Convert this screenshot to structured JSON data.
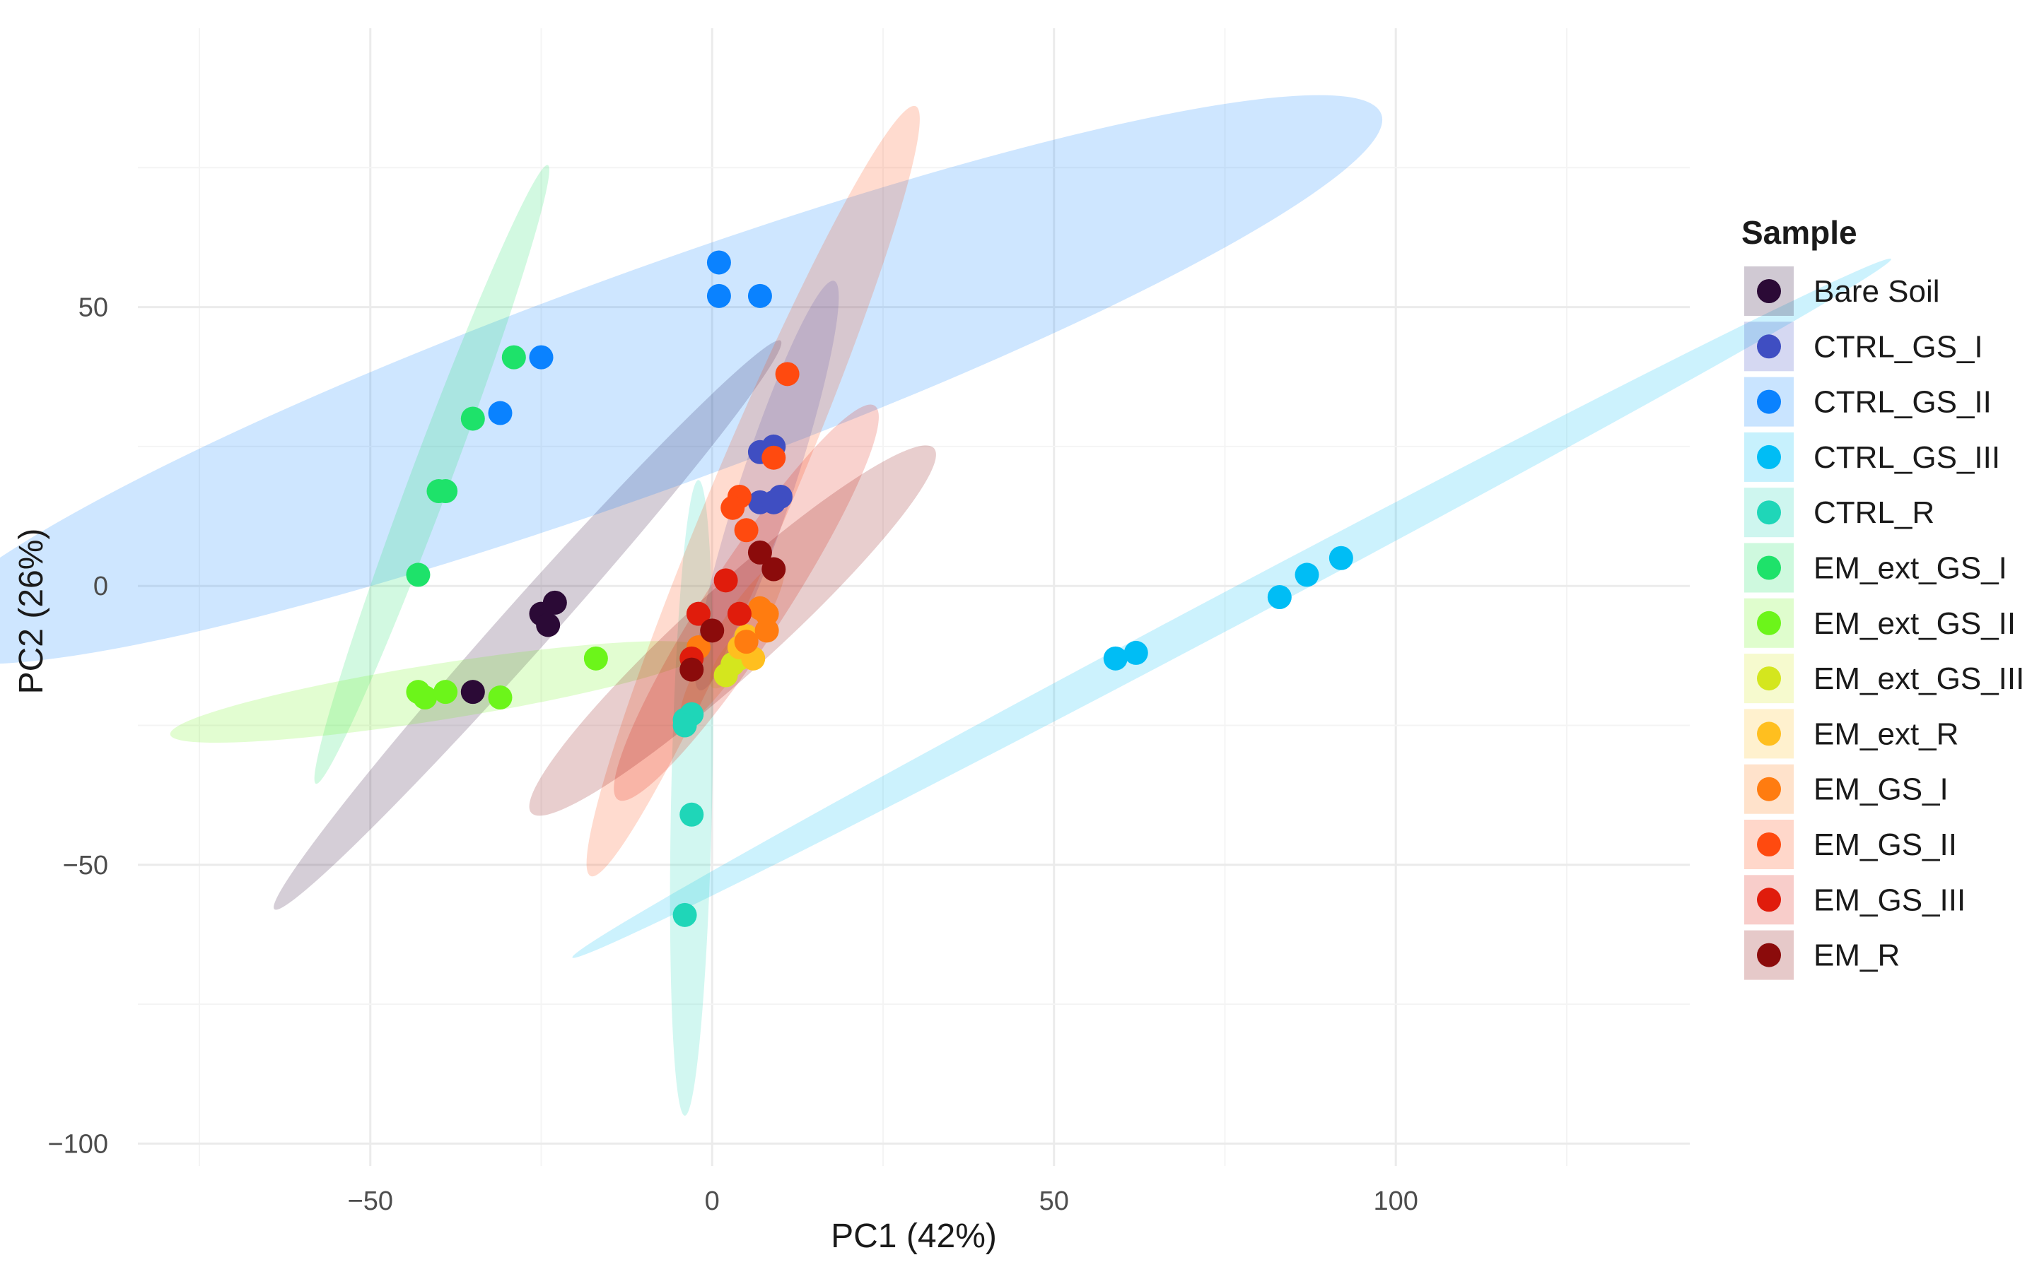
{
  "chart_data": {
    "type": "scatter",
    "title": "",
    "xlabel": "PC1 (42%)",
    "ylabel": "PC2 (26%)",
    "xlim": [
      -84,
      143
    ],
    "ylim": [
      -104,
      100
    ],
    "xticks": [
      -50,
      0,
      50,
      100
    ],
    "yticks": [
      -100,
      -50,
      0,
      50
    ],
    "xtick_labels": [
      "−50",
      "0",
      "50",
      "100"
    ],
    "ytick_labels": [
      "−100",
      "−50",
      "0",
      "50"
    ],
    "grid": true,
    "legend": {
      "title": "Sample",
      "position": "right"
    },
    "series": [
      {
        "name": "Bare Soil",
        "color": "#2b0a36",
        "ellipse": {
          "cx": -27,
          "cy": -7,
          "a": 63,
          "b": 4,
          "angle_deg": 54
        },
        "points": [
          [
            -25,
            -5
          ],
          [
            -23,
            -3
          ],
          [
            -24,
            -7
          ],
          [
            -35,
            -19
          ]
        ]
      },
      {
        "name": "CTRL_GS_I",
        "color": "#3f4ec2",
        "ellipse": {
          "cx": 8,
          "cy": 18,
          "a": 38,
          "b": 4,
          "angle_deg": 75
        },
        "points": [
          [
            7,
            24
          ],
          [
            9,
            25
          ],
          [
            7,
            15
          ],
          [
            10,
            16
          ],
          [
            9,
            15
          ]
        ]
      },
      {
        "name": "CTRL_GS_II",
        "color": "#0a82ff",
        "ellipse": {
          "cx": -9,
          "cy": 37,
          "a": 117,
          "b": 19,
          "angle_deg": 24
        },
        "points": [
          [
            1,
            58
          ],
          [
            1,
            52
          ],
          [
            7,
            52
          ],
          [
            -25,
            41
          ],
          [
            -31,
            31
          ]
        ]
      },
      {
        "name": "CTRL_GS_III",
        "color": "#00bdf5",
        "ellipse": {
          "cx": 76,
          "cy": -4,
          "a": 115,
          "b": 3,
          "angle_deg": 33
        },
        "points": [
          [
            59,
            -13
          ],
          [
            62,
            -12
          ],
          [
            83,
            -2
          ],
          [
            87,
            2
          ],
          [
            92,
            5
          ]
        ]
      },
      {
        "name": "CTRL_R",
        "color": "#1fd6b8",
        "ellipse": {
          "cx": -3,
          "cy": -38,
          "a": 57,
          "b": 3,
          "angle_deg": 89
        },
        "points": [
          [
            -4,
            -24
          ],
          [
            -3,
            -23
          ],
          [
            -4,
            -25
          ],
          [
            -3,
            -41
          ],
          [
            -4,
            -59
          ]
        ]
      },
      {
        "name": "EM_ext_GS_I",
        "color": "#1ee26a",
        "ellipse": {
          "cx": -41,
          "cy": 20,
          "a": 58,
          "b": 3,
          "angle_deg": 73
        },
        "points": [
          [
            -29,
            41
          ],
          [
            -35,
            30
          ],
          [
            -39,
            17
          ],
          [
            -40,
            17
          ],
          [
            -43,
            2
          ]
        ]
      },
      {
        "name": "EM_ext_GS_II",
        "color": "#6cf51a",
        "ellipse": {
          "cx": -40,
          "cy": -19,
          "a": 40,
          "b": 5,
          "angle_deg": 11
        },
        "points": [
          [
            -17,
            -13
          ],
          [
            -43,
            -19
          ],
          [
            -42,
            -20
          ],
          [
            -39,
            -19
          ],
          [
            -31,
            -20
          ]
        ]
      },
      {
        "name": "EM_ext_GS_III",
        "color": "#d4e61e",
        "ellipse": {
          "cx": 3,
          "cy": -13,
          "a": 6,
          "b": 2,
          "angle_deg": 60
        },
        "points": [
          [
            2,
            -16
          ],
          [
            3,
            -14
          ],
          [
            4,
            -13
          ]
        ]
      },
      {
        "name": "EM_ext_R",
        "color": "#ffbf1f",
        "ellipse": {
          "cx": 4,
          "cy": -12,
          "a": 5,
          "b": 2,
          "angle_deg": 60
        },
        "points": [
          [
            4,
            -11
          ],
          [
            6,
            -13
          ],
          [
            5,
            -9
          ]
        ]
      },
      {
        "name": "EM_GS_I",
        "color": "#ff7c10",
        "ellipse": {
          "cx": 3,
          "cy": -10,
          "a": 16,
          "b": 3,
          "angle_deg": 63
        },
        "points": [
          [
            7,
            -4
          ],
          [
            8,
            -5
          ],
          [
            8,
            -8
          ],
          [
            5,
            -10
          ],
          [
            -2,
            -11
          ]
        ]
      },
      {
        "name": "EM_GS_II",
        "color": "#ff4a0f",
        "ellipse": {
          "cx": 6,
          "cy": 17,
          "a": 73,
          "b": 6,
          "angle_deg": 71
        },
        "points": [
          [
            11,
            38
          ],
          [
            9,
            23
          ],
          [
            4,
            16
          ],
          [
            3,
            14
          ],
          [
            5,
            10
          ]
        ]
      },
      {
        "name": "EM_GS_III",
        "color": "#e01c0c",
        "ellipse": {
          "cx": 5,
          "cy": -3,
          "a": 40,
          "b": 6,
          "angle_deg": 62
        },
        "points": [
          [
            2,
            1
          ],
          [
            4,
            -5
          ],
          [
            -2,
            -5
          ],
          [
            -3,
            -13
          ]
        ]
      },
      {
        "name": "EM_R",
        "color": "#8b0b0b",
        "ellipse": {
          "cx": 3,
          "cy": -8,
          "a": 44,
          "b": 7,
          "angle_deg": 48
        },
        "points": [
          [
            9,
            3
          ],
          [
            7,
            6
          ],
          [
            0,
            -8
          ],
          [
            -3,
            -15
          ]
        ]
      }
    ]
  }
}
